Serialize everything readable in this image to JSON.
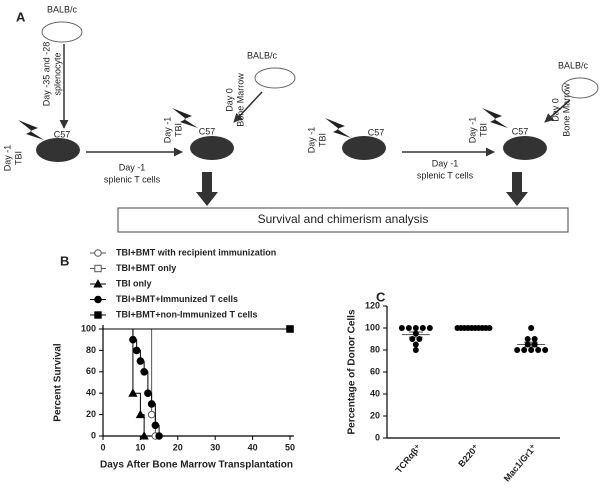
{
  "diagram": {
    "panel_label": "A",
    "texts": [
      "BALB/c",
      "Day -35 and -28",
      "splenocyte",
      "C57",
      "Day -1",
      "TBI",
      "Day -1",
      "splenic T cells",
      "BALB/c",
      "Day 0",
      "Bone Marrow",
      "Day -1",
      "TBI",
      "C57",
      "Day -1",
      "TBI",
      "C57",
      "Day -1",
      "splenic T cells",
      "Day -1",
      "TBI",
      "C57",
      "BALB/c",
      "Day 0",
      "Bone Marrow"
    ],
    "box": "Survival and chimerism analysis"
  },
  "chart_data": [
    {
      "type": "step",
      "panel_label": "B",
      "x_label": "Days After Bone Marrow Transplantation",
      "y_label": "Percent Survival",
      "xlim": [
        0,
        50
      ],
      "xticks": [
        0,
        10,
        20,
        30,
        40,
        50
      ],
      "ylim": [
        0,
        100
      ],
      "yticks": [
        0,
        20,
        40,
        60,
        80,
        100
      ],
      "series": [
        {
          "name": "TBI+BMT with recipient immunization",
          "marker": "circle-open",
          "color": "#555",
          "x": [
            0,
            13,
            14
          ],
          "values": [
            100,
            20,
            0
          ]
        },
        {
          "name": "TBI+BMT only",
          "marker": "square-open",
          "color": "#555",
          "x": [
            0,
            50
          ],
          "values": [
            100,
            100
          ]
        },
        {
          "name": "TBI only",
          "marker": "triangle",
          "color": "#000",
          "x": [
            0,
            8,
            10,
            11
          ],
          "values": [
            100,
            40,
            20,
            0
          ]
        },
        {
          "name": "TBI+BMT+Immunized T cells",
          "marker": "circle",
          "color": "#000",
          "x": [
            0,
            8,
            9,
            10,
            11,
            12,
            13,
            14,
            15
          ],
          "values": [
            100,
            90,
            80,
            70,
            60,
            40,
            30,
            10,
            0
          ]
        },
        {
          "name": "TBI+BMT+non-Immunized T cells",
          "marker": "square",
          "color": "#000",
          "x": [
            0,
            50
          ],
          "values": [
            100,
            100
          ]
        }
      ]
    },
    {
      "type": "dot",
      "panel_label": "C",
      "y_label": "Percentage of Donor Cells",
      "ylim": [
        0,
        120
      ],
      "yticks": [
        0,
        20,
        40,
        60,
        80,
        100,
        120
      ],
      "categories": [
        "TCRαβ⁺",
        "B220⁺",
        "Mac1/Gr1⁺"
      ],
      "color": "#000",
      "groups": [
        [
          100,
          100,
          100,
          100,
          100,
          95,
          90,
          90,
          85,
          80
        ],
        [
          100,
          100,
          100,
          100,
          100,
          100,
          100,
          100,
          100,
          100
        ],
        [
          100,
          90,
          90,
          85,
          85,
          80,
          80,
          80,
          80,
          80
        ]
      ]
    }
  ]
}
